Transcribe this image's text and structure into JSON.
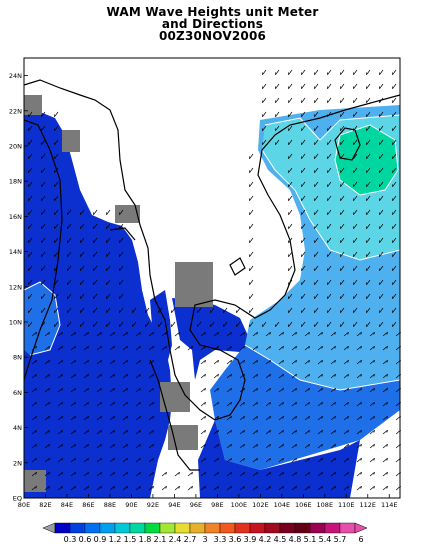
{
  "title": {
    "line1": "WAM Wave Heights unit Meter",
    "line2": "and Directions",
    "line3": "00Z30NOV2006"
  },
  "axes": {
    "x_ticks": [
      "80E",
      "82E",
      "84E",
      "86E",
      "88E",
      "90E",
      "92E",
      "94E",
      "96E",
      "98E",
      "100E",
      "102E",
      "104E",
      "106E",
      "108E",
      "110E",
      "112E",
      "114E"
    ],
    "y_ticks": [
      "EQ",
      "2N",
      "4N",
      "6N",
      "8N",
      "10N",
      "12N",
      "14N",
      "16N",
      "18N",
      "20N",
      "22N",
      "24N"
    ],
    "xlim": [
      80,
      115
    ],
    "ylim": [
      0,
      25
    ]
  },
  "colorbar": {
    "labels": [
      "0.3",
      "0.6",
      "0.9",
      "1.2",
      "1.5",
      "1.8",
      "2.1",
      "2.4",
      "2.7",
      "3",
      "3.3",
      "3.6",
      "3.9",
      "4.2",
      "4.5",
      "4.8",
      "5.1",
      "5.4",
      "5.7",
      "6"
    ],
    "colors": [
      "#0000c8",
      "#0040e0",
      "#0070f0",
      "#00a0f0",
      "#00c8d8",
      "#00d7a0",
      "#00dc40",
      "#a0e632",
      "#e6dc32",
      "#e6af2d",
      "#f08228",
      "#f05a1e",
      "#e0321e",
      "#c8141e",
      "#a00a1e",
      "#78001e",
      "#640014",
      "#9c0050",
      "#c8147a",
      "#e650aa"
    ]
  },
  "map_legend": {
    "colors": {
      "deep_blue": "#0c2fd0",
      "mid_blue": "#1f6fe8",
      "light_blue": "#4fb0f0",
      "cyan": "#5cd6e6",
      "teal": "#00d7a0",
      "land_mask": "#7a7a7a"
    }
  }
}
